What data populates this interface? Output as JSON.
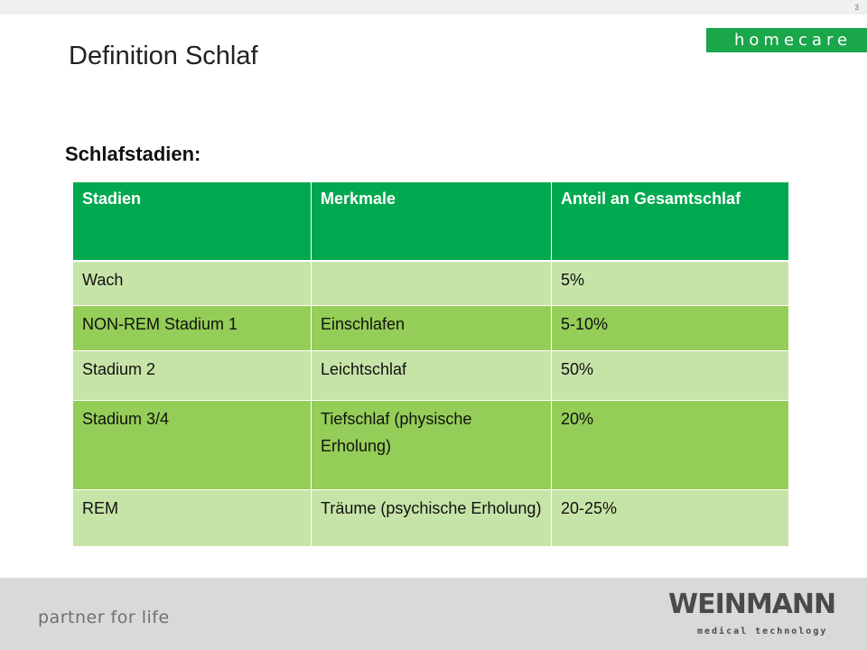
{
  "page_number": "3",
  "brand": "homecare",
  "title": "Definition Schlaf",
  "section_heading": "Schlafstadien:",
  "table": {
    "headers": [
      "Stadien",
      "Merkmale",
      "Anteil an Gesamtschlaf"
    ],
    "rows": [
      [
        "Wach",
        "",
        "5%"
      ],
      [
        "NON-REM Stadium 1",
        "Einschlafen",
        "5-10%"
      ],
      [
        "Stadium 2",
        "Leichtschlaf",
        "50%"
      ],
      [
        "Stadium 3/4",
        "Tiefschlaf (physische Erholung)",
        "20%"
      ],
      [
        "REM",
        "Träume (psychische Erholung)",
        "20-25%"
      ]
    ]
  },
  "footer": {
    "tagline": "partner for life",
    "logo_text": "WEINMANN",
    "logo_subtext": "medical technology"
  },
  "colors": {
    "header_green": "#00a84f",
    "row_light": "#c7e4a8",
    "row_dark": "#94cd57",
    "brand_green": "#1aa64a"
  }
}
